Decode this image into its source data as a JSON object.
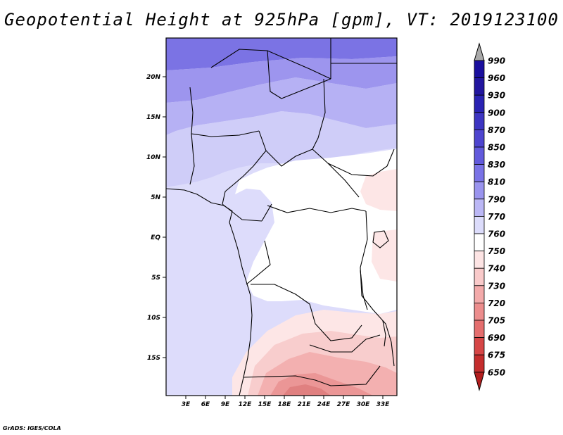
{
  "title": "Geopotential Height at 925hPa [gpm], VT: 2019123100",
  "footer": "GrADS: IGES/COLA",
  "map": {
    "lat_labels": [
      "20N",
      "15N",
      "10N",
      "5N",
      "EQ",
      "5S",
      "10S",
      "15S"
    ],
    "lon_labels": [
      "3E",
      "6E",
      "9E",
      "12E",
      "15E",
      "18E",
      "21E",
      "24E",
      "27E",
      "30E",
      "33E"
    ]
  },
  "colorbar": {
    "levels": [
      "990",
      "960",
      "930",
      "900",
      "870",
      "850",
      "830",
      "810",
      "790",
      "770",
      "760",
      "750",
      "740",
      "730",
      "720",
      "705",
      "690",
      "675",
      "650"
    ],
    "colors": {
      "over": "#a9a9a9",
      "under": "#b21e1e",
      "bins": [
        "#1a0f9e",
        "#22169f",
        "#2a23b3",
        "#3d35c2",
        "#4e45cf",
        "#625adc",
        "#7a73e6",
        "#9a94ee",
        "#bbb7f5",
        "#dcdcfb",
        "#ffffff",
        "#fde4e4",
        "#f9caca",
        "#f3aaaa",
        "#ec8d8d",
        "#e46e6e",
        "#d64646",
        "#c42d2d"
      ]
    }
  },
  "field_colors": {
    "c850": "#7b73e4",
    "c830": "#9d95ee",
    "c810": "#b6b1f4",
    "c790": "#cfcdf8",
    "c770": "#dddcfb",
    "c760": "#ffffff",
    "c750": "#fde6e6",
    "c740": "#f8cdcd",
    "c730": "#f3b0b0",
    "c720": "#eb9696",
    "c705": "#e08080"
  }
}
